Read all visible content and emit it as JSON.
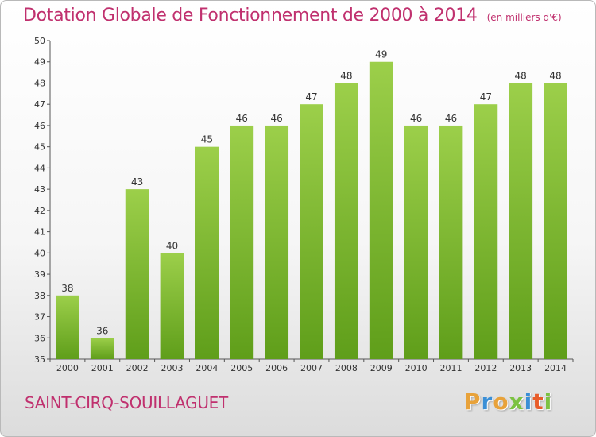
{
  "header": {
    "title": "Dotation Globale de Fonctionnement de 2000 à 2014",
    "unit": "(en milliers d'€)"
  },
  "footer": {
    "commune": "SAINT-CIRQ-SOUILLAGUET",
    "logo": "Proxiti",
    "logo_colors": [
      "#e8a23a",
      "#3b8fd6",
      "#e8a23a",
      "#7cc242",
      "#3b8fd6",
      "#e85d2a",
      "#7cc242"
    ]
  },
  "chart_data": {
    "type": "bar",
    "title": "Dotation Globale de Fonctionnement de 2000 à 2014",
    "subtitle": "(en milliers d'€)",
    "xlabel": "",
    "ylabel": "",
    "categories": [
      "2000",
      "2001",
      "2002",
      "2003",
      "2004",
      "2005",
      "2006",
      "2007",
      "2008",
      "2009",
      "2010",
      "2011",
      "2012",
      "2013",
      "2014"
    ],
    "values": [
      38,
      36,
      43,
      40,
      45,
      46,
      46,
      47,
      48,
      49,
      46,
      46,
      47,
      48,
      48
    ],
    "ylim": [
      35,
      50
    ],
    "yticks": [
      35,
      36,
      37,
      38,
      39,
      40,
      41,
      42,
      43,
      44,
      45,
      46,
      47,
      48,
      49,
      50
    ],
    "grid": false,
    "bar_color": "#7fbf2e",
    "bar_color_light": "#9ccf4a",
    "bar_color_dark": "#5f9e1a"
  }
}
